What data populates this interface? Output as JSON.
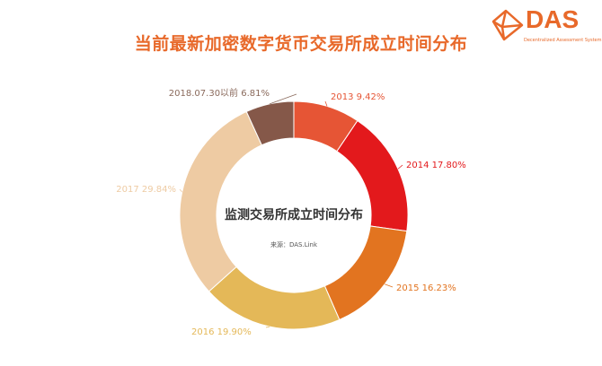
{
  "logo": {
    "name": "DAS",
    "subtitle": "Decentralized Assessment System"
  },
  "title": "当前最新加密数字货币交易所成立时间分布",
  "chart_data": {
    "type": "pie",
    "donut": true,
    "center_title": "监测交易所成立时间分布",
    "center_source": "来源：DAS.Link",
    "categories": [
      "2013",
      "2014",
      "2015",
      "2016",
      "2017",
      "2018.07.30以前"
    ],
    "values": [
      9.42,
      17.8,
      16.23,
      19.9,
      29.84,
      6.81
    ],
    "labels": [
      "2013 9.42%",
      "2014 17.80%",
      "2015 16.23%",
      "2016 19.90%",
      "2017 29.84%",
      "2018.07.30以前 6.81%"
    ],
    "colors": [
      "#e65535",
      "#e3191c",
      "#e27420",
      "#e4b858",
      "#eecba3",
      "#855849"
    ],
    "label_colors": [
      "#e65535",
      "#e3191c",
      "#e27420",
      "#e4b858",
      "#eecba3",
      "#8a6a5c"
    ],
    "unit": "%",
    "legend": "none"
  }
}
